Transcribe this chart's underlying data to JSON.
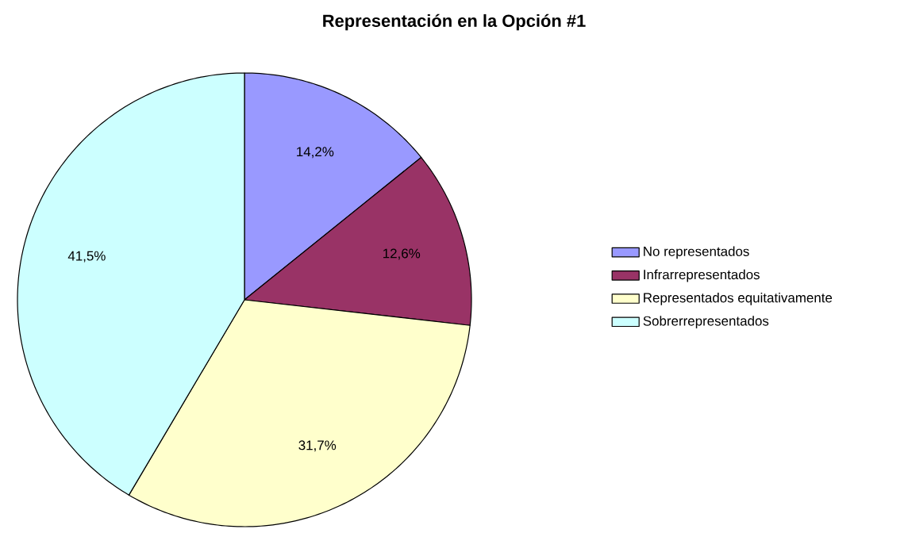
{
  "chart_data": {
    "type": "pie",
    "title": "Representación en la Opción #1",
    "categories": [
      "No representados",
      "Infrarrepresentados",
      "Representados equitativamente",
      "Sobrerrepresentados"
    ],
    "values": [
      14.2,
      12.6,
      31.7,
      41.5
    ],
    "value_labels": [
      "14,2%",
      "12,6%",
      "31,7%",
      "41,5%"
    ],
    "colors": [
      "#9999ff",
      "#993366",
      "#ffffcc",
      "#ccffff"
    ],
    "legend": "right"
  }
}
